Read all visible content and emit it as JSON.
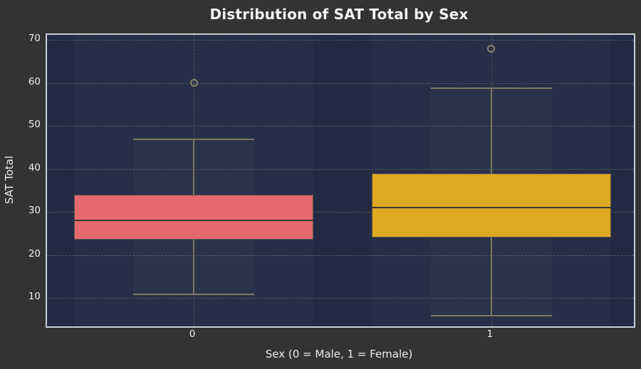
{
  "figure": {
    "title": "Distribution of SAT Total by Sex"
  },
  "colors": {
    "figure_bg": "#333333",
    "plot_bg": "#242a44",
    "plot_border": "#c9cdd4",
    "gridline": "rgba(190,186,160,0.30)",
    "text": "#eeeeee",
    "whisker": "#7d7866",
    "median": "#3b3a33",
    "box_edge": "#5c584a",
    "outlier_edge": "#8a8574",
    "box0_fill": "#e5696d",
    "box1_fill": "#dfa821"
  },
  "chart_data": {
    "type": "box",
    "title": "Distribution of SAT Total by Sex",
    "xlabel": "Sex (0 = Male, 1 = Female)",
    "ylabel": "SAT Total",
    "categories": [
      "0",
      "1"
    ],
    "yticks": [
      10,
      20,
      30,
      40,
      50,
      60,
      70
    ],
    "ylim": [
      3.4,
      71.2
    ],
    "grid": "dashed horizontal lines at yticks, dashed vertical lines at category centers",
    "legend": false,
    "boxes": [
      {
        "category": "0",
        "group_meaning": "Male",
        "whisker_low": 11,
        "q1": 23.5,
        "median": 28,
        "q3": 34,
        "whisker_high": 47,
        "outliers": [
          60
        ],
        "fill": "#e5696d"
      },
      {
        "category": "1",
        "group_meaning": "Female",
        "whisker_low": 6,
        "q1": 24,
        "median": 31,
        "q3": 39,
        "whisker_high": 59,
        "outliers": [
          68
        ],
        "fill": "#dfa821"
      }
    ],
    "layout": {
      "center_fracs": [
        0.25,
        0.757
      ],
      "box_width_frac": 0.408,
      "cap_width_frac": 0.206
    }
  }
}
